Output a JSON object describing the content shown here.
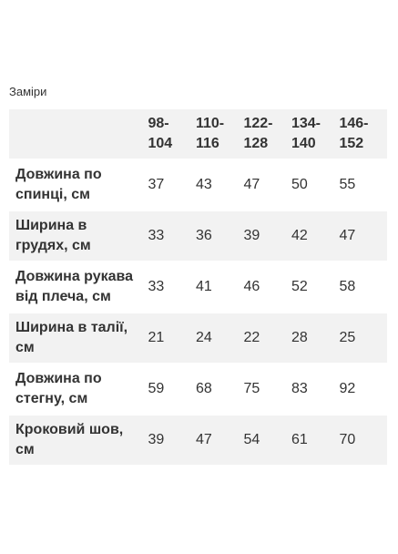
{
  "caption": "Заміри",
  "table": {
    "headers": [
      {
        "top": "98-",
        "bottom": "104"
      },
      {
        "top": "110-",
        "bottom": "116"
      },
      {
        "top": "122-",
        "bottom": "128"
      },
      {
        "top": "134-",
        "bottom": "140"
      },
      {
        "top": "146-",
        "bottom": "152"
      }
    ],
    "rows": [
      {
        "label_line1": "Довжина по",
        "label_line2": "спинці, см",
        "values": [
          "37",
          "43",
          "47",
          "50",
          "55"
        ]
      },
      {
        "label_line1": "Ширина в",
        "label_line2": "грудях, см",
        "values": [
          "33",
          "36",
          "39",
          "42",
          "47"
        ]
      },
      {
        "label_line1": "Довжина рукава",
        "label_line2": "від плеча, см",
        "values": [
          "33",
          "41",
          "46",
          "52",
          "58"
        ]
      },
      {
        "label_line1": "Ширина в талії,",
        "label_line2": "см",
        "values": [
          "21",
          "24",
          "22",
          "28",
          "25"
        ]
      },
      {
        "label_line1": "Довжина по",
        "label_line2": "стегну, см",
        "values": [
          "59",
          "68",
          "75",
          "83",
          "92"
        ]
      },
      {
        "label_line1": "Кроковий шов,",
        "label_line2": "см",
        "values": [
          "39",
          "47",
          "54",
          "61",
          "70"
        ]
      }
    ]
  }
}
